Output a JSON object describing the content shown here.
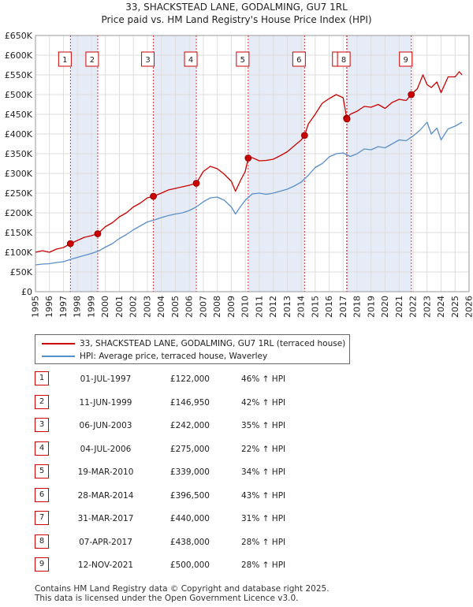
{
  "chart_data": {
    "type": "line",
    "title": "33, SHACKSTEAD LANE, GODALMING, GU7 1RL",
    "subtitle": "Price paid vs. HM Land Registry's House Price Index (HPI)",
    "xlabel": "",
    "ylabel": "",
    "xlim": [
      1995,
      2026
    ],
    "ylim": [
      0,
      650000
    ],
    "y_ticks": [
      0,
      50000,
      100000,
      150000,
      200000,
      250000,
      300000,
      350000,
      400000,
      450000,
      500000,
      550000,
      600000,
      650000
    ],
    "y_tick_labels": [
      "£0",
      "£50K",
      "£100K",
      "£150K",
      "£200K",
      "£250K",
      "£300K",
      "£350K",
      "£400K",
      "£450K",
      "£500K",
      "£550K",
      "£600K",
      "£650K"
    ],
    "x_ticks": [
      1995,
      1996,
      1997,
      1998,
      1999,
      2000,
      2001,
      2002,
      2003,
      2004,
      2005,
      2006,
      2007,
      2008,
      2009,
      2010,
      2011,
      2012,
      2013,
      2014,
      2015,
      2016,
      2017,
      2018,
      2019,
      2020,
      2021,
      2022,
      2023,
      2024,
      2025,
      2026
    ],
    "series": [
      {
        "name": "33, SHACKSTEAD LANE, GODALMING, GU7 1RL (terraced house)",
        "color": "#cc0000",
        "x": [
          1995.0,
          1995.5,
          1996.0,
          1996.5,
          1997.0,
          1997.5,
          1998.0,
          1998.5,
          1999.0,
          1999.45,
          2000.0,
          2000.5,
          2001.0,
          2001.5,
          2002.0,
          2002.5,
          2003.0,
          2003.43,
          2004.0,
          2004.5,
          2005.0,
          2005.5,
          2006.0,
          2006.5,
          2007.0,
          2007.5,
          2008.0,
          2008.5,
          2009.0,
          2009.3,
          2009.7,
          2010.0,
          2010.21,
          2010.5,
          2011.0,
          2011.5,
          2012.0,
          2012.5,
          2013.0,
          2013.5,
          2014.0,
          2014.24,
          2014.5,
          2015.0,
          2015.5,
          2016.0,
          2016.5,
          2017.0,
          2017.25,
          2017.27,
          2017.5,
          2018.0,
          2018.5,
          2019.0,
          2019.5,
          2020.0,
          2020.5,
          2021.0,
          2021.5,
          2021.87,
          2022.3,
          2022.7,
          2023.0,
          2023.3,
          2023.7,
          2024.0,
          2024.5,
          2025.0,
          2025.3,
          2025.5
        ],
        "values": [
          100000,
          104000,
          100000,
          108000,
          112000,
          122000,
          130000,
          138000,
          142000,
          146950,
          165000,
          175000,
          190000,
          200000,
          215000,
          225000,
          238000,
          242000,
          250000,
          258000,
          262000,
          266000,
          270000,
          275000,
          305000,
          318000,
          312000,
          298000,
          280000,
          255000,
          285000,
          305000,
          339000,
          340000,
          332000,
          333000,
          336000,
          345000,
          355000,
          370000,
          385000,
          396500,
          425000,
          450000,
          478000,
          490000,
          500000,
          492000,
          440000,
          438000,
          450000,
          458000,
          470000,
          468000,
          475000,
          465000,
          480000,
          488000,
          485000,
          500000,
          515000,
          550000,
          525000,
          518000,
          532000,
          505000,
          545000,
          545000,
          558000,
          550000
        ]
      },
      {
        "name": "HPI: Average price, terraced house, Waverley",
        "color": "#5b8fc9",
        "x": [
          1995.0,
          1995.5,
          1996.0,
          1996.5,
          1997.0,
          1997.5,
          1998.0,
          1998.5,
          1999.0,
          1999.5,
          2000.0,
          2000.5,
          2001.0,
          2001.5,
          2002.0,
          2002.5,
          2003.0,
          2003.5,
          2004.0,
          2004.5,
          2005.0,
          2005.5,
          2006.0,
          2006.5,
          2007.0,
          2007.5,
          2008.0,
          2008.5,
          2009.0,
          2009.3,
          2009.7,
          2010.0,
          2010.5,
          2011.0,
          2011.5,
          2012.0,
          2012.5,
          2013.0,
          2013.5,
          2014.0,
          2014.5,
          2015.0,
          2015.5,
          2016.0,
          2016.5,
          2017.0,
          2017.5,
          2018.0,
          2018.5,
          2019.0,
          2019.5,
          2020.0,
          2020.5,
          2021.0,
          2021.5,
          2022.0,
          2022.5,
          2023.0,
          2023.3,
          2023.7,
          2024.0,
          2024.5,
          2025.0,
          2025.5
        ],
        "values": [
          68000,
          70000,
          71000,
          74000,
          76000,
          82000,
          87000,
          92000,
          97000,
          103000,
          113000,
          122000,
          135000,
          145000,
          157000,
          167000,
          177000,
          182000,
          188000,
          193000,
          197000,
          200000,
          206000,
          215000,
          228000,
          238000,
          240000,
          232000,
          215000,
          197000,
          218000,
          232000,
          248000,
          250000,
          247000,
          250000,
          255000,
          260000,
          268000,
          278000,
          295000,
          315000,
          325000,
          342000,
          350000,
          352000,
          343000,
          350000,
          362000,
          360000,
          368000,
          365000,
          375000,
          385000,
          383000,
          395000,
          410000,
          430000,
          400000,
          415000,
          385000,
          413000,
          420000,
          430000
        ]
      }
    ],
    "sale_markers": [
      {
        "num": "1",
        "x": 1997.5,
        "value": 122000
      },
      {
        "num": "2",
        "x": 1999.45,
        "value": 146950
      },
      {
        "num": "3",
        "x": 2003.43,
        "value": 242000
      },
      {
        "num": "4",
        "x": 2006.5,
        "value": 275000
      },
      {
        "num": "5",
        "x": 2010.21,
        "value": 339000
      },
      {
        "num": "6",
        "x": 2014.24,
        "value": 396500
      },
      {
        "num": "7",
        "x": 2017.25,
        "value": 440000
      },
      {
        "num": "8",
        "x": 2017.27,
        "value": 438000
      },
      {
        "num": "9",
        "x": 2021.87,
        "value": 500000
      }
    ],
    "shaded_ranges": [
      [
        1997.5,
        1999.45
      ],
      [
        2003.43,
        2006.5
      ],
      [
        2010.21,
        2014.24
      ],
      [
        2017.25,
        2021.87
      ]
    ],
    "legend_position": "below"
  },
  "legend": {
    "property_label": "33, SHACKSTEAD LANE, GODALMING, GU7 1RL (terraced house)",
    "hpi_label": "HPI: Average price, terraced house, Waverley",
    "property_color": "#cc0000",
    "hpi_color": "#5b8fc9"
  },
  "sales": [
    {
      "num": "1",
      "date": "01-JUL-1997",
      "price": "£122,000",
      "hpi": "46% ↑ HPI"
    },
    {
      "num": "2",
      "date": "11-JUN-1999",
      "price": "£146,950",
      "hpi": "42% ↑ HPI"
    },
    {
      "num": "3",
      "date": "06-JUN-2003",
      "price": "£242,000",
      "hpi": "35% ↑ HPI"
    },
    {
      "num": "4",
      "date": "04-JUL-2006",
      "price": "£275,000",
      "hpi": "22% ↑ HPI"
    },
    {
      "num": "5",
      "date": "19-MAR-2010",
      "price": "£339,000",
      "hpi": "34% ↑ HPI"
    },
    {
      "num": "6",
      "date": "28-MAR-2014",
      "price": "£396,500",
      "hpi": "43% ↑ HPI"
    },
    {
      "num": "7",
      "date": "31-MAR-2017",
      "price": "£440,000",
      "hpi": "31% ↑ HPI"
    },
    {
      "num": "8",
      "date": "07-APR-2017",
      "price": "£438,000",
      "hpi": "28% ↑ HPI"
    },
    {
      "num": "9",
      "date": "12-NOV-2021",
      "price": "£500,000",
      "hpi": "28% ↑ HPI"
    }
  ],
  "footer": {
    "line1": "Contains HM Land Registry data © Copyright and database right 2025.",
    "line2": "This data is licensed under the Open Government Licence v3.0."
  }
}
